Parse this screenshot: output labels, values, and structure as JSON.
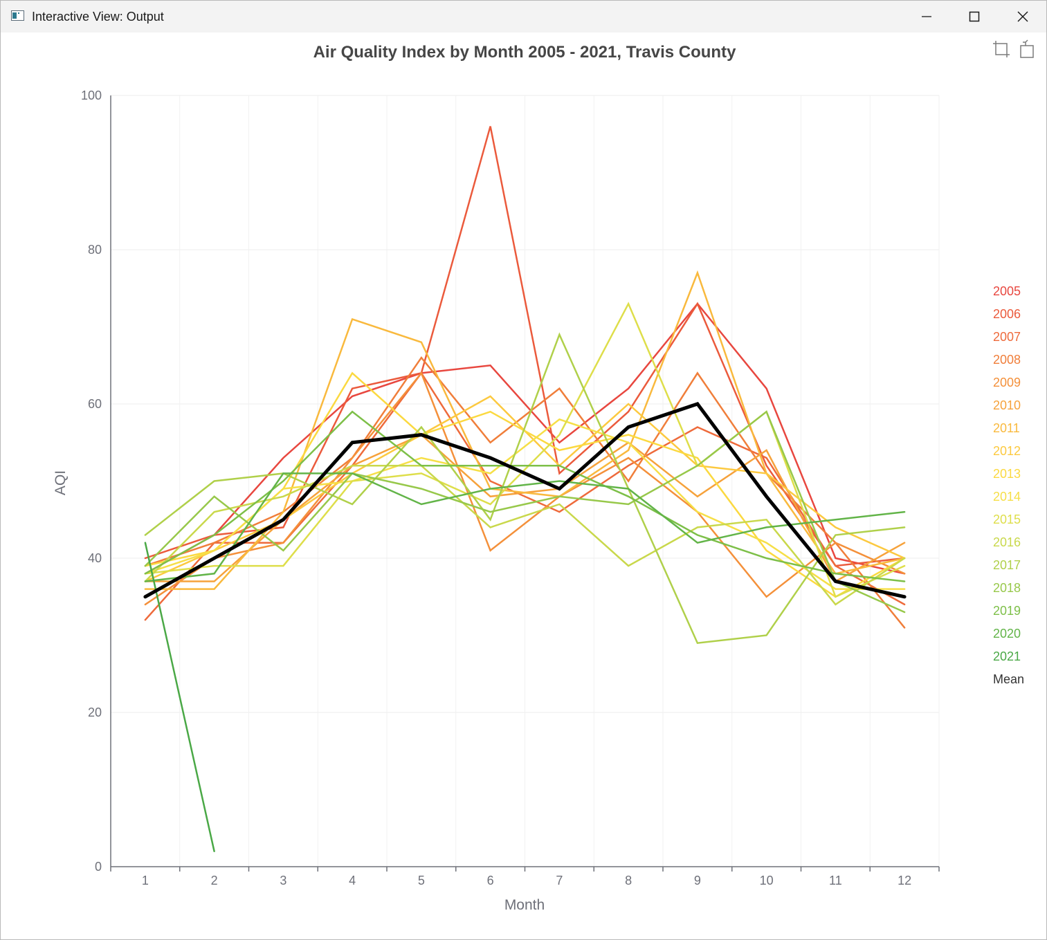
{
  "window": {
    "title": "Interactive View: Output",
    "icons": {
      "app": "app-window-icon",
      "minimize": "minimize-icon",
      "maximize": "maximize-icon",
      "close": "close-icon"
    }
  },
  "toolbox": {
    "items": [
      {
        "icon": "data-zoom-icon"
      },
      {
        "icon": "restore-icon"
      }
    ]
  },
  "chart_data": {
    "type": "line",
    "title": "Air Quality Index by Month 2005 - 2021, Travis County",
    "xlabel": "Month",
    "ylabel": "AQI",
    "categories": [
      "1",
      "2",
      "3",
      "4",
      "5",
      "6",
      "7",
      "8",
      "9",
      "10",
      "11",
      "12"
    ],
    "ylim": [
      0,
      100
    ],
    "yticks": [
      "0",
      "20",
      "40",
      "60",
      "80",
      "100"
    ],
    "grid": true,
    "legend_position": "right",
    "series": [
      {
        "name": "2005",
        "color": "#e8473f",
        "width": 2.5,
        "values": [
          38,
          43,
          53,
          61,
          64,
          65,
          55,
          62,
          73,
          62,
          40,
          38
        ]
      },
      {
        "name": "2006",
        "color": "#eb5a3c",
        "width": 2.5,
        "values": [
          40,
          43,
          44,
          62,
          64,
          96,
          51,
          59,
          73,
          52,
          39,
          40
        ]
      },
      {
        "name": "2007",
        "color": "#ee6a3b",
        "width": 2.5,
        "values": [
          32,
          42,
          42,
          52,
          64,
          50,
          46,
          52,
          57,
          53,
          39,
          34
        ]
      },
      {
        "name": "2008",
        "color": "#f07e3a",
        "width": 2.5,
        "values": [
          39,
          42,
          46,
          53,
          66,
          55,
          62,
          50,
          64,
          51,
          42,
          31
        ]
      },
      {
        "name": "2009",
        "color": "#f4903a",
        "width": 2.5,
        "values": [
          34,
          40,
          42,
          53,
          64,
          41,
          48,
          53,
          46,
          35,
          42,
          38
        ]
      },
      {
        "name": "2010",
        "color": "#f6a23b",
        "width": 2.5,
        "values": [
          37,
          37,
          45,
          52,
          56,
          48,
          49,
          55,
          48,
          54,
          37,
          42
        ]
      },
      {
        "name": "2011",
        "color": "#f9b93d",
        "width": 2.5,
        "values": [
          36,
          36,
          46,
          71,
          68,
          49,
          48,
          54,
          77,
          51,
          38,
          40
        ]
      },
      {
        "name": "2012",
        "color": "#fcc93f",
        "width": 2.5,
        "values": [
          37,
          41,
          45,
          51,
          56,
          61,
          52,
          60,
          52,
          51,
          44,
          40
        ]
      },
      {
        "name": "2013",
        "color": "#fbd940",
        "width": 2.5,
        "values": [
          39,
          41,
          49,
          64,
          56,
          59,
          54,
          56,
          53,
          41,
          35,
          40
        ]
      },
      {
        "name": "2014",
        "color": "#f6df47",
        "width": 2.5,
        "values": [
          38,
          41,
          49,
          50,
          53,
          51,
          58,
          55,
          46,
          42,
          36,
          36
        ]
      },
      {
        "name": "2015",
        "color": "#dede4a",
        "width": 2.5,
        "values": [
          38,
          39,
          39,
          50,
          51,
          47,
          56,
          73,
          52,
          59,
          35,
          39
        ]
      },
      {
        "name": "2016",
        "color": "#c9d84b",
        "width": 2.5,
        "values": [
          37,
          46,
          48,
          52,
          52,
          44,
          47,
          39,
          44,
          45,
          34,
          40
        ]
      },
      {
        "name": "2017",
        "color": "#b0d04a",
        "width": 2.5,
        "values": [
          43,
          50,
          51,
          47,
          57,
          45,
          69,
          49,
          29,
          30,
          43,
          44
        ]
      },
      {
        "name": "2018",
        "color": "#97c84a",
        "width": 2.5,
        "values": [
          39,
          48,
          41,
          51,
          49,
          46,
          48,
          47,
          52,
          59,
          37,
          33
        ]
      },
      {
        "name": "2019",
        "color": "#7dbf48",
        "width": 2.5,
        "values": [
          38,
          43,
          50,
          59,
          52,
          52,
          52,
          48,
          43,
          40,
          38,
          37
        ]
      },
      {
        "name": "2020",
        "color": "#62b448",
        "width": 2.5,
        "values": [
          37,
          38,
          51,
          51,
          47,
          49,
          50,
          49,
          42,
          44,
          45,
          46
        ]
      },
      {
        "name": "2021",
        "color": "#4aa846",
        "width": 2.5,
        "values": [
          42,
          2,
          null,
          null,
          null,
          null,
          null,
          null,
          null,
          null,
          null,
          null
        ]
      },
      {
        "name": "Mean",
        "color": "#000000",
        "width": 5,
        "values": [
          35,
          40,
          45,
          55,
          56,
          53,
          49,
          57,
          60,
          48,
          37,
          35
        ]
      }
    ]
  }
}
